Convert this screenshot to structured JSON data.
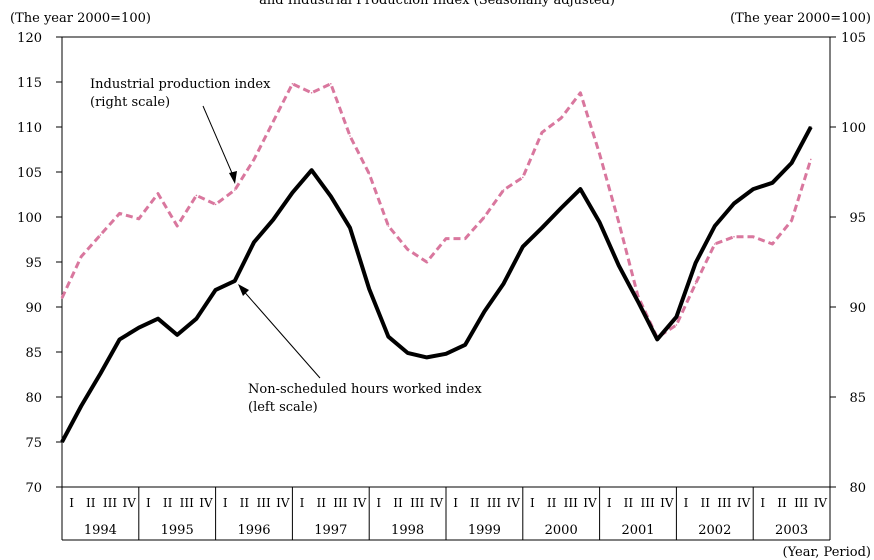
{
  "chart_data": {
    "type": "line",
    "title": "and Industrial Production Index (Seasonally adjusted)",
    "left_axis_label": "(The year 2000=100)",
    "right_axis_label": "(The year 2000=100)",
    "xlabel": "(Year, Period)",
    "left_ylim": [
      70,
      120
    ],
    "left_yticks": [
      70,
      75,
      80,
      85,
      90,
      95,
      100,
      105,
      110,
      115,
      120
    ],
    "right_ylim": [
      80,
      105
    ],
    "right_yticks": [
      80,
      85,
      90,
      95,
      100,
      105
    ],
    "years": [
      "1994",
      "1995",
      "1996",
      "1997",
      "1998",
      "1999",
      "2000",
      "2001",
      "2002",
      "2003"
    ],
    "quarters": [
      "I",
      "II",
      "III",
      "IV"
    ],
    "series": [
      {
        "name": "Non-scheduled hours worked index (left scale)",
        "label_lines": [
          "Non-scheduled hours worked index",
          "(left scale)"
        ],
        "axis": "left",
        "color": "#000000",
        "style": "solid",
        "values": [
          75.0,
          79.0,
          82.6,
          86.4,
          87.7,
          88.7,
          86.9,
          88.7,
          91.9,
          92.9,
          97.2,
          99.7,
          102.7,
          105.2,
          102.3,
          98.8,
          92.0,
          86.7,
          84.9,
          84.4,
          84.8,
          85.8,
          89.5,
          92.6,
          96.7,
          98.8,
          101.0,
          103.1,
          99.4,
          94.6,
          90.6,
          86.4,
          88.9,
          94.9,
          99.0,
          101.5,
          103.1,
          103.8,
          106.0,
          110.0
        ]
      },
      {
        "name": "Industrial production index (right scale)",
        "label_lines": [
          "Industrial production index",
          "(right scale)"
        ],
        "axis": "right",
        "color": "#d9779e",
        "style": "dashed",
        "values": [
          90.5,
          92.8,
          94.0,
          95.2,
          94.9,
          96.3,
          94.5,
          96.2,
          95.7,
          96.5,
          98.2,
          100.3,
          102.4,
          101.9,
          102.4,
          99.5,
          97.4,
          94.5,
          93.2,
          92.5,
          93.8,
          93.8,
          95.0,
          96.5,
          97.2,
          99.7,
          100.5,
          101.9,
          98.5,
          94.7,
          90.6,
          88.3,
          89.0,
          91.3,
          93.5,
          93.9,
          93.9,
          93.5,
          94.8,
          98.2
        ]
      }
    ]
  }
}
